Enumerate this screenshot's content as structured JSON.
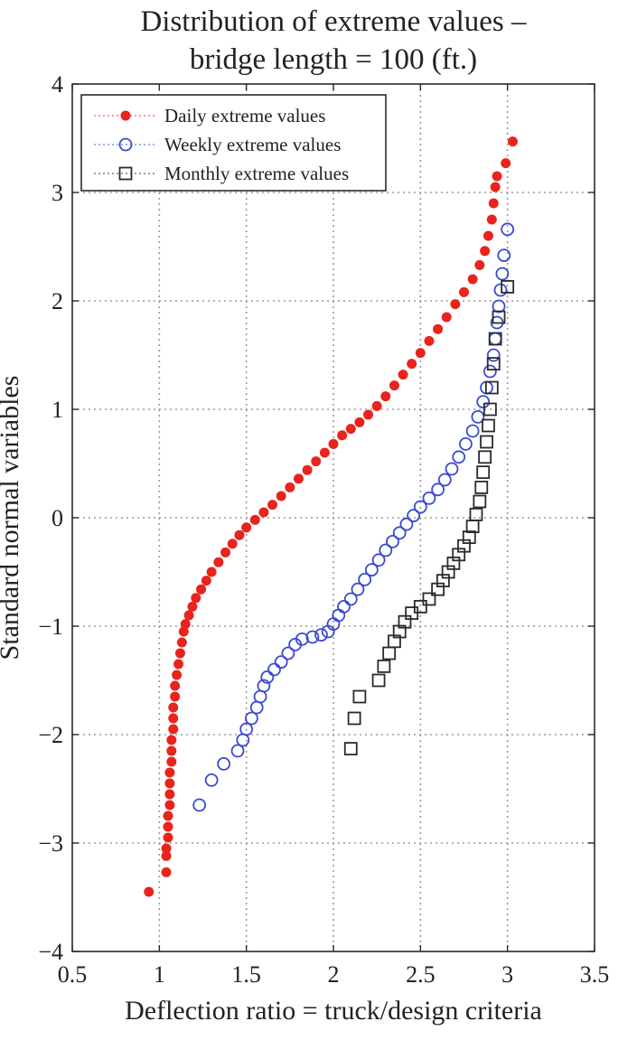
{
  "chart_data": {
    "type": "scatter",
    "title": [
      "Distribution of extreme values –",
      "bridge length = 100 (ft.)"
    ],
    "xlabel": "Deflection ratio = truck/design criteria",
    "ylabel": "Standard normal variables",
    "xlim": [
      0.5,
      3.5
    ],
    "ylim": [
      -4,
      4
    ],
    "xticks": [
      0.5,
      1,
      1.5,
      2,
      2.5,
      3,
      3.5
    ],
    "xtick_labels": [
      "0.5",
      "1",
      "1.5",
      "2",
      "2.5",
      "3",
      "3.5"
    ],
    "yticks": [
      -4,
      -3,
      -2,
      -1,
      0,
      1,
      2,
      3,
      4
    ],
    "ytick_labels": [
      "−4",
      "−3",
      "−2",
      "−1",
      "0",
      "1",
      "2",
      "3",
      "4"
    ],
    "grid": true,
    "legend_position": "top-left",
    "series": [
      {
        "name": "Daily extreme values",
        "marker": "filled-circle",
        "color": "#e8241c",
        "points": [
          [
            0.94,
            -3.45
          ],
          [
            1.04,
            -3.27
          ],
          [
            1.04,
            -3.12
          ],
          [
            1.04,
            -3.05
          ],
          [
            1.05,
            -2.95
          ],
          [
            1.05,
            -2.85
          ],
          [
            1.05,
            -2.75
          ],
          [
            1.06,
            -2.65
          ],
          [
            1.06,
            -2.55
          ],
          [
            1.06,
            -2.45
          ],
          [
            1.06,
            -2.35
          ],
          [
            1.07,
            -2.25
          ],
          [
            1.07,
            -2.15
          ],
          [
            1.07,
            -2.05
          ],
          [
            1.08,
            -1.95
          ],
          [
            1.08,
            -1.85
          ],
          [
            1.08,
            -1.75
          ],
          [
            1.09,
            -1.65
          ],
          [
            1.09,
            -1.55
          ],
          [
            1.1,
            -1.45
          ],
          [
            1.11,
            -1.35
          ],
          [
            1.12,
            -1.25
          ],
          [
            1.13,
            -1.15
          ],
          [
            1.14,
            -1.05
          ],
          [
            1.15,
            -0.98
          ],
          [
            1.17,
            -0.9
          ],
          [
            1.19,
            -0.82
          ],
          [
            1.21,
            -0.74
          ],
          [
            1.24,
            -0.66
          ],
          [
            1.27,
            -0.58
          ],
          [
            1.3,
            -0.5
          ],
          [
            1.34,
            -0.41
          ],
          [
            1.38,
            -0.32
          ],
          [
            1.42,
            -0.24
          ],
          [
            1.46,
            -0.16
          ],
          [
            1.5,
            -0.09
          ],
          [
            1.55,
            -0.02
          ],
          [
            1.6,
            0.05
          ],
          [
            1.65,
            0.12
          ],
          [
            1.7,
            0.2
          ],
          [
            1.75,
            0.28
          ],
          [
            1.8,
            0.36
          ],
          [
            1.85,
            0.44
          ],
          [
            1.9,
            0.52
          ],
          [
            1.95,
            0.6
          ],
          [
            2.0,
            0.68
          ],
          [
            2.05,
            0.76
          ],
          [
            2.1,
            0.82
          ],
          [
            2.15,
            0.88
          ],
          [
            2.2,
            0.95
          ],
          [
            2.25,
            1.03
          ],
          [
            2.3,
            1.12
          ],
          [
            2.35,
            1.22
          ],
          [
            2.4,
            1.32
          ],
          [
            2.45,
            1.42
          ],
          [
            2.5,
            1.52
          ],
          [
            2.55,
            1.63
          ],
          [
            2.6,
            1.74
          ],
          [
            2.65,
            1.85
          ],
          [
            2.7,
            1.97
          ],
          [
            2.75,
            2.08
          ],
          [
            2.8,
            2.2
          ],
          [
            2.84,
            2.33
          ],
          [
            2.87,
            2.46
          ],
          [
            2.89,
            2.6
          ],
          [
            2.91,
            2.75
          ],
          [
            2.92,
            2.9
          ],
          [
            2.93,
            3.05
          ],
          [
            2.94,
            3.15
          ],
          [
            2.99,
            3.27
          ],
          [
            3.03,
            3.47
          ]
        ]
      },
      {
        "name": "Weekly extreme values",
        "marker": "open-circle",
        "color": "#3a4ad0",
        "points": [
          [
            1.23,
            -2.65
          ],
          [
            1.3,
            -2.42
          ],
          [
            1.37,
            -2.27
          ],
          [
            1.45,
            -2.15
          ],
          [
            1.48,
            -2.05
          ],
          [
            1.5,
            -1.95
          ],
          [
            1.53,
            -1.85
          ],
          [
            1.56,
            -1.75
          ],
          [
            1.58,
            -1.65
          ],
          [
            1.6,
            -1.55
          ],
          [
            1.62,
            -1.47
          ],
          [
            1.66,
            -1.4
          ],
          [
            1.7,
            -1.33
          ],
          [
            1.74,
            -1.25
          ],
          [
            1.78,
            -1.17
          ],
          [
            1.82,
            -1.12
          ],
          [
            1.88,
            -1.1
          ],
          [
            1.93,
            -1.08
          ],
          [
            1.97,
            -1.05
          ],
          [
            2.0,
            -0.98
          ],
          [
            2.03,
            -0.9
          ],
          [
            2.06,
            -0.82
          ],
          [
            2.1,
            -0.75
          ],
          [
            2.14,
            -0.66
          ],
          [
            2.18,
            -0.57
          ],
          [
            2.22,
            -0.48
          ],
          [
            2.26,
            -0.39
          ],
          [
            2.3,
            -0.3
          ],
          [
            2.34,
            -0.22
          ],
          [
            2.38,
            -0.14
          ],
          [
            2.42,
            -0.06
          ],
          [
            2.46,
            0.02
          ],
          [
            2.5,
            0.1
          ],
          [
            2.55,
            0.18
          ],
          [
            2.6,
            0.26
          ],
          [
            2.64,
            0.35
          ],
          [
            2.68,
            0.45
          ],
          [
            2.72,
            0.56
          ],
          [
            2.76,
            0.68
          ],
          [
            2.8,
            0.8
          ],
          [
            2.83,
            0.93
          ],
          [
            2.86,
            1.07
          ],
          [
            2.88,
            1.2
          ],
          [
            2.9,
            1.35
          ],
          [
            2.92,
            1.5
          ],
          [
            2.93,
            1.65
          ],
          [
            2.94,
            1.8
          ],
          [
            2.95,
            1.95
          ],
          [
            2.96,
            2.1
          ],
          [
            2.97,
            2.25
          ],
          [
            2.98,
            2.42
          ],
          [
            3.0,
            2.66
          ]
        ]
      },
      {
        "name": "Monthly extreme values",
        "marker": "open-square",
        "color": "#2b2b2b",
        "points": [
          [
            2.1,
            -2.13
          ],
          [
            2.12,
            -1.85
          ],
          [
            2.15,
            -1.65
          ],
          [
            2.26,
            -1.5
          ],
          [
            2.29,
            -1.37
          ],
          [
            2.32,
            -1.25
          ],
          [
            2.35,
            -1.14
          ],
          [
            2.38,
            -1.05
          ],
          [
            2.41,
            -0.96
          ],
          [
            2.45,
            -0.88
          ],
          [
            2.5,
            -0.82
          ],
          [
            2.55,
            -0.75
          ],
          [
            2.6,
            -0.66
          ],
          [
            2.63,
            -0.58
          ],
          [
            2.66,
            -0.5
          ],
          [
            2.69,
            -0.42
          ],
          [
            2.72,
            -0.34
          ],
          [
            2.75,
            -0.26
          ],
          [
            2.78,
            -0.18
          ],
          [
            2.8,
            -0.08
          ],
          [
            2.82,
            0.03
          ],
          [
            2.84,
            0.15
          ],
          [
            2.85,
            0.28
          ],
          [
            2.86,
            0.42
          ],
          [
            2.87,
            0.56
          ],
          [
            2.88,
            0.7
          ],
          [
            2.89,
            0.85
          ],
          [
            2.9,
            1.0
          ],
          [
            2.91,
            1.2
          ],
          [
            2.92,
            1.42
          ],
          [
            2.93,
            1.65
          ],
          [
            2.95,
            1.85
          ],
          [
            3.0,
            2.13
          ]
        ]
      }
    ]
  }
}
